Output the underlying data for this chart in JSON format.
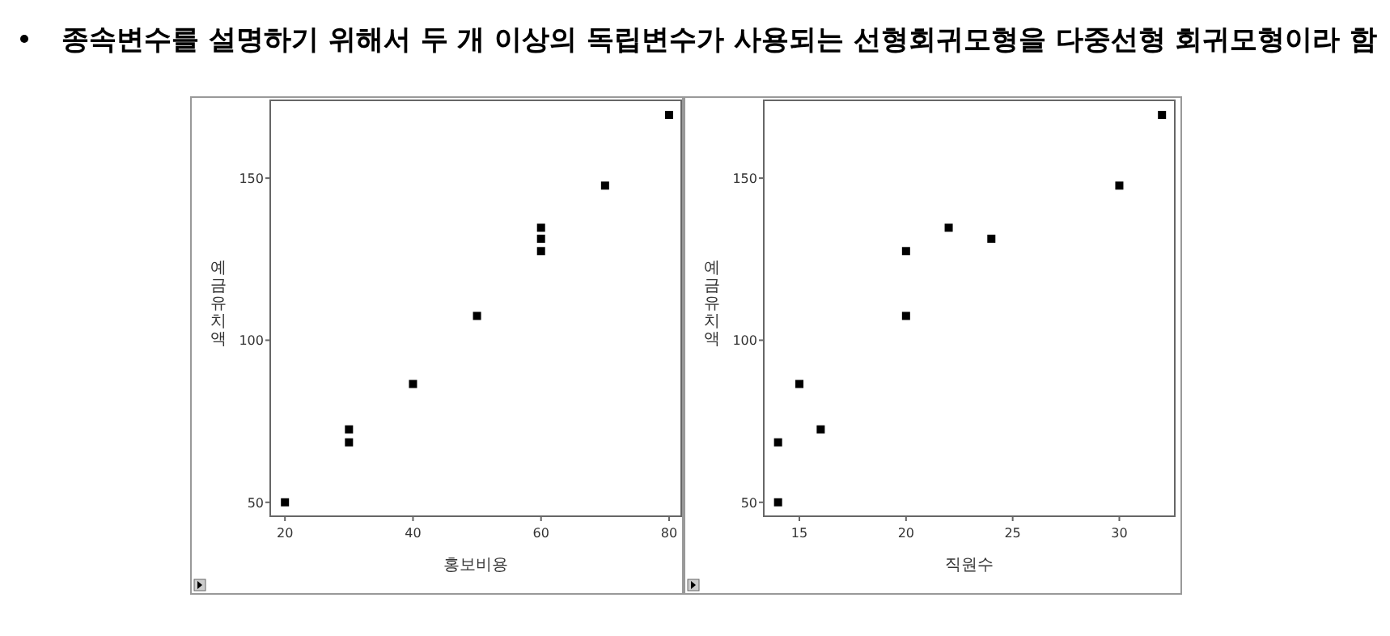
{
  "chart_data": [
    {
      "type": "scatter",
      "title": "종속변수를 설명하기 위해서 두 개 이상의 독립변수가 사용되는 선형회귀모형을 다중선형 회귀모형이라 함",
      "xlabel": "홍보비용",
      "ylabel": "예금유치액",
      "marker": "square",
      "color": "#000000",
      "x": [
        20,
        30,
        30,
        40,
        50,
        60,
        60,
        60,
        70,
        80
      ],
      "values": [
        50,
        72.5,
        68.5,
        86.5,
        107.5,
        134.7,
        131.3,
        127.5,
        147.7,
        169.5
      ],
      "xlim": [
        17.7,
        81.9
      ],
      "ylim": [
        45.7,
        174
      ],
      "xticks": [
        20,
        40,
        60,
        80
      ],
      "yticks": [
        50,
        100,
        150
      ],
      "grid": false
    },
    {
      "type": "scatter",
      "xlabel": "직원수",
      "ylabel": "예금유치액",
      "marker": "square",
      "color": "#000000",
      "x": [
        14,
        14,
        15,
        16,
        20,
        20,
        22,
        24,
        30,
        32
      ],
      "values": [
        50,
        68.5,
        86.5,
        72.5,
        127.5,
        107.5,
        134.7,
        131.3,
        147.7,
        169.5
      ],
      "xlim": [
        13.33,
        32.6
      ],
      "ylim": [
        45.7,
        174
      ],
      "xticks": [
        15,
        20,
        25,
        30
      ],
      "yticks": [
        50,
        100,
        150
      ],
      "grid": false
    }
  ]
}
